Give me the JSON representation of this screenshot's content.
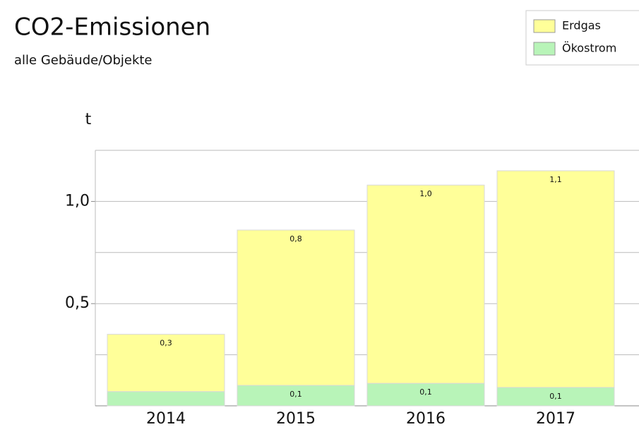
{
  "chart_data": {
    "type": "stacked_bar",
    "title": "CO2-Emissionen",
    "subtitle": "alle Gebäude/Objekte",
    "y_label": "t",
    "categories": [
      "2014",
      "2015",
      "2016",
      "2017"
    ],
    "series": [
      {
        "name": "Ökostrom",
        "color": "#b8f4b8",
        "values": [
          0.07,
          0.1,
          0.11,
          0.09
        ],
        "value_labels": [
          null,
          "0,1",
          "0,1",
          "0,1"
        ]
      },
      {
        "name": "Erdgas",
        "color": "#ffff99",
        "values": [
          0.28,
          0.76,
          0.97,
          1.06
        ],
        "value_labels": [
          "0,3",
          "0,8",
          "1,0",
          "1,1"
        ]
      }
    ],
    "ylim": [
      0,
      1.25
    ],
    "yticks": [
      {
        "value": 0.5,
        "label": "0,5"
      },
      {
        "value": 1.0,
        "label": "1,0"
      }
    ],
    "ygrid": [
      0.25,
      0.5,
      0.75,
      1.0,
      1.25
    ],
    "legend": "top-right",
    "legend_order": [
      "Erdgas",
      "Ökostrom"
    ]
  }
}
